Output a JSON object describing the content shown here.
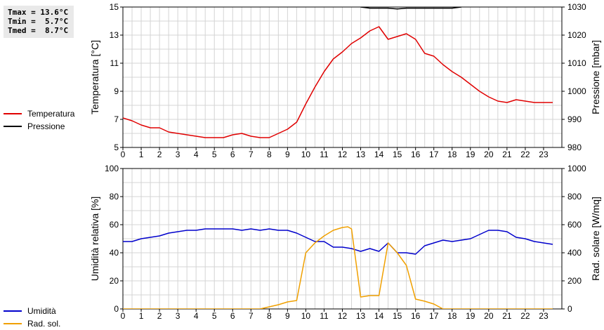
{
  "stats": {
    "tmax": "Tmax = 13.6°C",
    "tmin": "Tmin =  5.7°C",
    "tmed": "Tmed =  8.7°C"
  },
  "chart_data": [
    {
      "type": "line",
      "xlabel": "",
      "x_ticks": [
        "0",
        "1",
        "2",
        "3",
        "4",
        "5",
        "6",
        "7",
        "8",
        "9",
        "10",
        "11",
        "12",
        "13",
        "14",
        "15",
        "16",
        "17",
        "18",
        "19",
        "20",
        "21",
        "22",
        "23"
      ],
      "xlim": [
        0,
        24
      ],
      "ylabel": "Temperatura [°C]",
      "ylim": [
        5,
        15
      ],
      "y_ticks": [
        "5",
        "7",
        "9",
        "11",
        "13",
        "15"
      ],
      "y2label": "Pressione [mbar]",
      "y2lim": [
        980,
        1030
      ],
      "y2_ticks": [
        "980",
        "990",
        "1000",
        "1010",
        "1020",
        "1030"
      ],
      "grid": true,
      "legend_position": "left",
      "series": [
        {
          "name": "Temperatura",
          "axis": "left",
          "color": "#e00000",
          "x": [
            0,
            0.5,
            1,
            1.5,
            2,
            2.5,
            3,
            3.5,
            4,
            4.5,
            5,
            5.5,
            6,
            6.5,
            7,
            7.5,
            8,
            8.5,
            9,
            9.5,
            10,
            10.5,
            11,
            11.5,
            12,
            12.5,
            13,
            13.5,
            14,
            14.5,
            15,
            15.5,
            16,
            16.5,
            17,
            17.5,
            18,
            18.5,
            19,
            19.5,
            20,
            20.5,
            21,
            21.5,
            22,
            22.5,
            23,
            23.5
          ],
          "values": [
            7.1,
            6.9,
            6.6,
            6.4,
            6.4,
            6.1,
            6.0,
            5.9,
            5.8,
            5.7,
            5.7,
            5.7,
            5.9,
            6.0,
            5.8,
            5.7,
            5.7,
            6.0,
            6.3,
            6.8,
            8.1,
            9.3,
            10.4,
            11.3,
            11.8,
            12.4,
            12.8,
            13.3,
            13.6,
            12.7,
            12.9,
            13.1,
            12.7,
            11.7,
            11.5,
            10.9,
            10.4,
            10.0,
            9.5,
            9.0,
            8.6,
            8.3,
            8.2,
            8.4,
            8.3,
            8.2,
            8.2,
            8.2
          ]
        },
        {
          "name": "Pressione",
          "axis": "right",
          "color": "#000000",
          "x": [
            13,
            13.5,
            14,
            14.5,
            15,
            15.5,
            16,
            16.5,
            17,
            17.5,
            18,
            18.5
          ],
          "values": [
            1030,
            1029.6,
            1029.6,
            1029.6,
            1029.3,
            1029.6,
            1029.6,
            1029.6,
            1029.6,
            1029.6,
            1029.6,
            1030
          ]
        }
      ]
    },
    {
      "type": "line",
      "xlabel": "",
      "x_ticks": [
        "0",
        "1",
        "2",
        "3",
        "4",
        "5",
        "6",
        "7",
        "8",
        "9",
        "10",
        "11",
        "12",
        "13",
        "14",
        "15",
        "16",
        "17",
        "18",
        "19",
        "20",
        "21",
        "22",
        "23"
      ],
      "xlim": [
        0,
        24
      ],
      "ylabel": "Umidità relativa [%]",
      "ylim": [
        0,
        100
      ],
      "y_ticks": [
        "0",
        "20",
        "40",
        "60",
        "80",
        "100"
      ],
      "y2label": "Rad. solare [W/mq]",
      "y2lim": [
        0,
        1000
      ],
      "y2_ticks": [
        "0",
        "200",
        "400",
        "600",
        "800",
        "1000"
      ],
      "grid": true,
      "legend_position": "left",
      "series": [
        {
          "name": "Umidità",
          "axis": "left",
          "color": "#0000cc",
          "x": [
            0,
            0.5,
            1,
            1.5,
            2,
            2.5,
            3,
            3.5,
            4,
            4.5,
            5,
            5.5,
            6,
            6.5,
            7,
            7.5,
            8,
            8.5,
            9,
            9.5,
            10,
            10.5,
            11,
            11.5,
            12,
            12.5,
            13,
            13.5,
            14,
            14.5,
            15,
            15.5,
            16,
            16.5,
            17,
            17.5,
            18,
            18.5,
            19,
            19.5,
            20,
            20.5,
            21,
            21.5,
            22,
            22.5,
            23,
            23.5
          ],
          "values": [
            48,
            48,
            50,
            51,
            52,
            54,
            55,
            56,
            56,
            57,
            57,
            57,
            57,
            56,
            57,
            56,
            57,
            56,
            56,
            54,
            51,
            48,
            48,
            44,
            44,
            43,
            41,
            43,
            41,
            47,
            40,
            40,
            39,
            45,
            47,
            49,
            48,
            49,
            50,
            53,
            56,
            56,
            55,
            51,
            50,
            48,
            47,
            46
          ]
        },
        {
          "name": "Rad. sol.",
          "axis": "right",
          "color": "#f0a000",
          "x": [
            0,
            7.5,
            8,
            8.5,
            9,
            9.5,
            10,
            10.5,
            11,
            11.5,
            12,
            12.3,
            12.5,
            13,
            13.5,
            14,
            14.5,
            15,
            15.5,
            16,
            16.5,
            17,
            17.5,
            18,
            23.5
          ],
          "values": [
            0,
            0,
            15,
            30,
            50,
            60,
            400,
            470,
            520,
            560,
            580,
            585,
            570,
            85,
            95,
            95,
            470,
            400,
            310,
            70,
            55,
            35,
            0,
            0,
            0
          ]
        }
      ]
    }
  ]
}
